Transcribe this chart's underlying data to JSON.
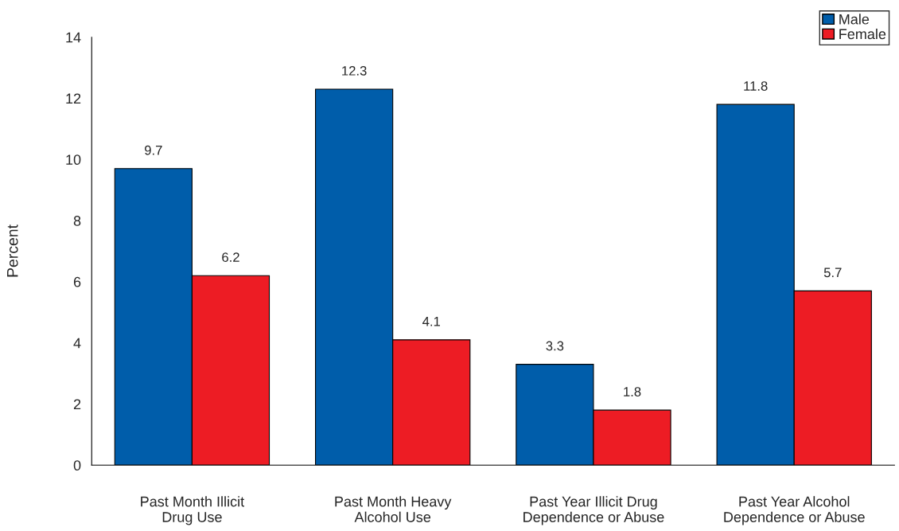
{
  "chart_data": {
    "type": "bar",
    "ylabel": "Percent",
    "categories": [
      "Past Month Illicit\nDrug Use",
      "Past Month Heavy\nAlcohol Use",
      "Past Year Illicit Drug\nDependence or Abuse",
      "Past Year Alcohol\nDependence or Abuse"
    ],
    "series": [
      {
        "name": "Male",
        "color": "#005daa",
        "values": [
          9.7,
          12.3,
          3.3,
          11.8
        ]
      },
      {
        "name": "Female",
        "color": "#ed1c24",
        "values": [
          6.2,
          4.1,
          1.8,
          5.7
        ]
      }
    ],
    "ylim": [
      0,
      14
    ],
    "yticks": [
      0,
      2,
      4,
      6,
      8,
      10,
      12,
      14
    ],
    "data_labels": true,
    "legend": "top right",
    "grid": false
  }
}
